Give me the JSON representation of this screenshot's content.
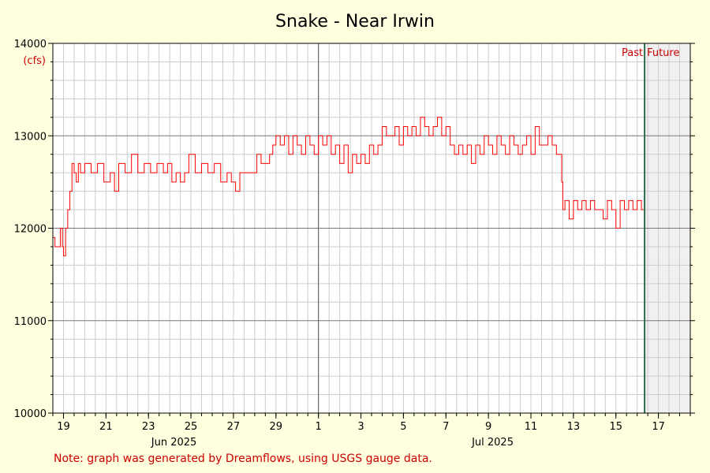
{
  "chart_data": {
    "type": "line",
    "title": "Snake - Near Irwin",
    "ylabel": "(cfs)",
    "xlabel": "",
    "ylim": [
      10000,
      14000
    ],
    "yticks": [
      10000,
      11000,
      12000,
      13000,
      14000
    ],
    "ytick_labels": [
      "10000",
      "11000",
      "12000",
      "13000",
      "14000"
    ],
    "xlim_days": [
      18.5,
      48.5
    ],
    "day_ticks": [
      {
        "day": 19,
        "label": "19"
      },
      {
        "day": 21,
        "label": "21"
      },
      {
        "day": 23,
        "label": "23"
      },
      {
        "day": 25,
        "label": "25"
      },
      {
        "day": 27,
        "label": "27"
      },
      {
        "day": 29,
        "label": "29"
      },
      {
        "day": 31,
        "label": "1"
      },
      {
        "day": 33,
        "label": "3"
      },
      {
        "day": 35,
        "label": "5"
      },
      {
        "day": 37,
        "label": "7"
      },
      {
        "day": 39,
        "label": "9"
      },
      {
        "day": 41,
        "label": "11"
      },
      {
        "day": 43,
        "label": "13"
      },
      {
        "day": 45,
        "label": "15"
      },
      {
        "day": 47,
        "label": "17"
      }
    ],
    "month_labels": [
      {
        "day": 24.2,
        "label": "Jun 2025"
      },
      {
        "day": 39.2,
        "label": "Jul 2025"
      }
    ],
    "month_divider_day": 31,
    "now_day": 46.35,
    "past_label": "Past",
    "future_label": "Future",
    "series": [
      {
        "color": "#ff0000",
        "points": [
          [
            18.5,
            11900
          ],
          [
            18.6,
            11800
          ],
          [
            18.75,
            11800
          ],
          [
            18.85,
            12000
          ],
          [
            18.95,
            11800
          ],
          [
            19.0,
            11700
          ],
          [
            19.1,
            12000
          ],
          [
            19.2,
            12200
          ],
          [
            19.3,
            12400
          ],
          [
            19.4,
            12700
          ],
          [
            19.5,
            12600
          ],
          [
            19.6,
            12500
          ],
          [
            19.7,
            12700
          ],
          [
            19.8,
            12600
          ],
          [
            20.0,
            12700
          ],
          [
            20.3,
            12600
          ],
          [
            20.6,
            12700
          ],
          [
            20.9,
            12500
          ],
          [
            21.2,
            12600
          ],
          [
            21.4,
            12400
          ],
          [
            21.6,
            12700
          ],
          [
            21.9,
            12600
          ],
          [
            22.2,
            12800
          ],
          [
            22.5,
            12600
          ],
          [
            22.8,
            12700
          ],
          [
            23.1,
            12600
          ],
          [
            23.4,
            12700
          ],
          [
            23.7,
            12600
          ],
          [
            23.9,
            12700
          ],
          [
            24.1,
            12500
          ],
          [
            24.3,
            12600
          ],
          [
            24.5,
            12500
          ],
          [
            24.7,
            12600
          ],
          [
            24.9,
            12800
          ],
          [
            25.2,
            12600
          ],
          [
            25.5,
            12700
          ],
          [
            25.8,
            12600
          ],
          [
            26.1,
            12700
          ],
          [
            26.4,
            12500
          ],
          [
            26.7,
            12600
          ],
          [
            26.9,
            12500
          ],
          [
            27.1,
            12400
          ],
          [
            27.3,
            12600
          ],
          [
            27.6,
            12600
          ],
          [
            27.9,
            12600
          ],
          [
            28.1,
            12800
          ],
          [
            28.3,
            12700
          ],
          [
            28.5,
            12700
          ],
          [
            28.7,
            12800
          ],
          [
            28.85,
            12900
          ],
          [
            29.0,
            13000
          ],
          [
            29.2,
            12900
          ],
          [
            29.4,
            13000
          ],
          [
            29.6,
            12800
          ],
          [
            29.8,
            13000
          ],
          [
            30.0,
            12900
          ],
          [
            30.2,
            12800
          ],
          [
            30.4,
            13000
          ],
          [
            30.6,
            12900
          ],
          [
            30.8,
            12800
          ],
          [
            31.0,
            13000
          ],
          [
            31.2,
            12900
          ],
          [
            31.4,
            13000
          ],
          [
            31.6,
            12800
          ],
          [
            31.8,
            12900
          ],
          [
            32.0,
            12700
          ],
          [
            32.2,
            12900
          ],
          [
            32.4,
            12600
          ],
          [
            32.6,
            12800
          ],
          [
            32.8,
            12700
          ],
          [
            33.0,
            12800
          ],
          [
            33.2,
            12700
          ],
          [
            33.4,
            12900
          ],
          [
            33.6,
            12800
          ],
          [
            33.8,
            12900
          ],
          [
            34.0,
            13100
          ],
          [
            34.2,
            13000
          ],
          [
            34.4,
            13000
          ],
          [
            34.6,
            13100
          ],
          [
            34.8,
            12900
          ],
          [
            35.0,
            13100
          ],
          [
            35.2,
            13000
          ],
          [
            35.4,
            13100
          ],
          [
            35.6,
            13000
          ],
          [
            35.8,
            13200
          ],
          [
            36.0,
            13100
          ],
          [
            36.2,
            13000
          ],
          [
            36.4,
            13100
          ],
          [
            36.6,
            13200
          ],
          [
            36.8,
            13000
          ],
          [
            37.0,
            13100
          ],
          [
            37.2,
            12900
          ],
          [
            37.4,
            12800
          ],
          [
            37.6,
            12900
          ],
          [
            37.8,
            12800
          ],
          [
            38.0,
            12900
          ],
          [
            38.2,
            12700
          ],
          [
            38.4,
            12900
          ],
          [
            38.6,
            12800
          ],
          [
            38.8,
            13000
          ],
          [
            39.0,
            12900
          ],
          [
            39.2,
            12800
          ],
          [
            39.4,
            13000
          ],
          [
            39.6,
            12900
          ],
          [
            39.8,
            12800
          ],
          [
            40.0,
            13000
          ],
          [
            40.2,
            12900
          ],
          [
            40.4,
            12800
          ],
          [
            40.6,
            12900
          ],
          [
            40.8,
            13000
          ],
          [
            41.0,
            12800
          ],
          [
            41.2,
            13100
          ],
          [
            41.4,
            12900
          ],
          [
            41.6,
            12900
          ],
          [
            41.8,
            13000
          ],
          [
            42.0,
            12900
          ],
          [
            42.2,
            12800
          ],
          [
            42.4,
            12800
          ],
          [
            42.45,
            12500
          ],
          [
            42.5,
            12200
          ],
          [
            42.6,
            12300
          ],
          [
            42.8,
            12100
          ],
          [
            43.0,
            12300
          ],
          [
            43.2,
            12200
          ],
          [
            43.4,
            12300
          ],
          [
            43.6,
            12200
          ],
          [
            43.8,
            12300
          ],
          [
            44.0,
            12200
          ],
          [
            44.2,
            12200
          ],
          [
            44.4,
            12100
          ],
          [
            44.6,
            12300
          ],
          [
            44.8,
            12200
          ],
          [
            45.0,
            12000
          ],
          [
            45.2,
            12300
          ],
          [
            45.4,
            12200
          ],
          [
            45.6,
            12300
          ],
          [
            45.8,
            12200
          ],
          [
            46.0,
            12300
          ],
          [
            46.2,
            12200
          ],
          [
            46.3,
            12200
          ]
        ]
      }
    ]
  },
  "footer": {
    "note": "Note: graph was generated by Dreamflows, using USGS gauge data."
  }
}
